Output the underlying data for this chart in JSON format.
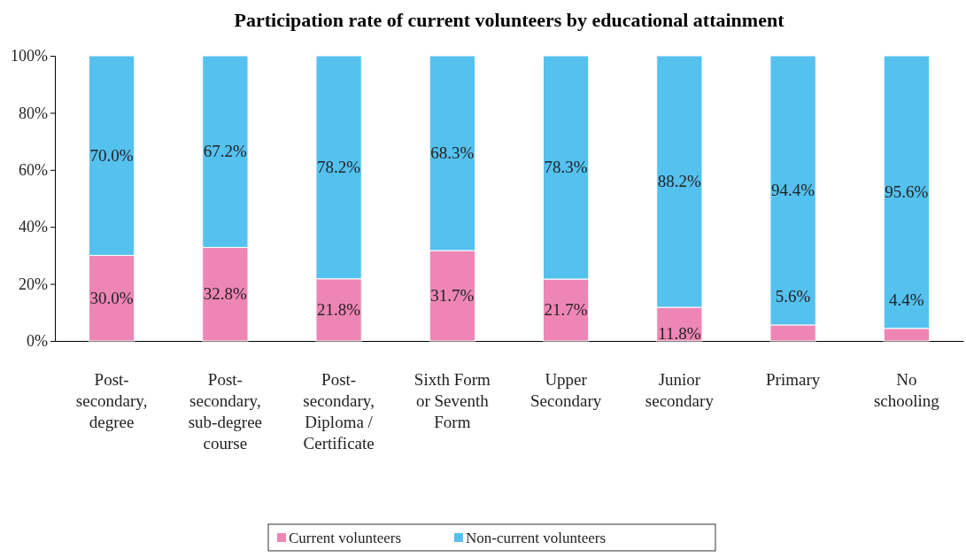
{
  "chart_data": {
    "type": "bar",
    "title": "Participation rate of current volunteers by educational attainment",
    "categories": [
      "Post-secondary, degree",
      "Post-secondary, sub-degree course",
      "Post-secondary, Diploma / Certificate",
      "Sixth Form or Seventh Form",
      "Upper Secondary",
      "Junior secondary",
      "Primary",
      "No schooling"
    ],
    "stacked": true,
    "series": [
      {
        "name": "Current volunteers",
        "color": "#ee86b5",
        "values": [
          30.0,
          32.8,
          21.8,
          31.7,
          21.7,
          11.8,
          5.6,
          4.4
        ],
        "value_labels": [
          "30.0%",
          "32.8%",
          "21.8%",
          "31.7%",
          "21.7%",
          "11.8%",
          "5.6%",
          "4.4%"
        ]
      },
      {
        "name": "Non-current volunteers",
        "color": "#55c1ef",
        "values": [
          70.0,
          67.2,
          78.2,
          68.3,
          78.3,
          88.2,
          94.4,
          95.6
        ],
        "value_labels": [
          "70.0%",
          "67.2%",
          "78.2%",
          "68.3%",
          "78.3%",
          "88.2%",
          "94.4%",
          "95.6%"
        ]
      }
    ],
    "ylim": [
      0,
      100
    ],
    "yticks": [
      {
        "value": 0,
        "label": "0%"
      },
      {
        "value": 20,
        "label": "20%"
      },
      {
        "value": 40,
        "label": "40%"
      },
      {
        "value": 60,
        "label": "60%"
      },
      {
        "value": 80,
        "label": "80%"
      },
      {
        "value": 100,
        "label": "100%"
      }
    ],
    "legend": "bottom"
  }
}
